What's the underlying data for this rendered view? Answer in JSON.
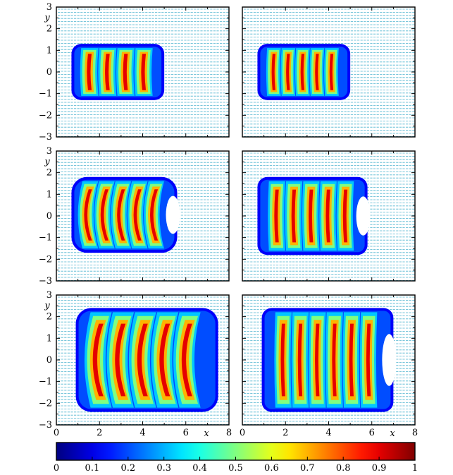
{
  "chart_data": {
    "type": "heatmap",
    "description_of_grid": "3x2 small multiples, normalized velocity magnitude fields with quiver vectors",
    "colorscale": "jet",
    "colorbar": {
      "min": 0,
      "max": 1,
      "ticks": [
        "0",
        "0.1",
        "0.2",
        "0.3",
        "0.4",
        "0.5",
        "0.6",
        "0.7",
        "0.8",
        "0.9",
        "1"
      ]
    },
    "xlim": [
      0,
      8
    ],
    "ylim": [
      -3,
      3
    ],
    "x_ticks": [
      "0",
      "2",
      "4",
      "6",
      "8"
    ],
    "y_ticks": [
      "3",
      "2",
      "1",
      "0",
      "−1",
      "−2",
      "−3"
    ],
    "xlabel": "x",
    "ylabel": "y",
    "panels": [
      {
        "row": 0,
        "col": 0,
        "x_range": [
          0.7,
          5.0
        ],
        "y_range": [
          -1.3,
          1.3
        ],
        "bands": 4,
        "shape": "flat",
        "front_opening": false
      },
      {
        "row": 0,
        "col": 1,
        "x_range": [
          0.7,
          5.0
        ],
        "y_range": [
          -1.3,
          1.3
        ],
        "bands": 5,
        "shape": "flat",
        "front_opening": false
      },
      {
        "row": 1,
        "col": 0,
        "x_range": [
          0.7,
          5.6
        ],
        "y_range": [
          -1.7,
          1.8
        ],
        "bands": 5,
        "shape": "chevron",
        "front_opening": true
      },
      {
        "row": 1,
        "col": 1,
        "x_range": [
          0.7,
          5.8
        ],
        "y_range": [
          -1.8,
          1.8
        ],
        "bands": 5,
        "shape": "flat",
        "front_opening": true
      },
      {
        "row": 2,
        "col": 0,
        "x_range": [
          0.9,
          7.5
        ],
        "y_range": [
          -2.4,
          2.4
        ],
        "bands": 5,
        "shape": "chevron",
        "front_opening": false
      },
      {
        "row": 2,
        "col": 1,
        "x_range": [
          0.9,
          7.0
        ],
        "y_range": [
          -2.4,
          2.4
        ],
        "bands": 6,
        "shape": "flat",
        "front_opening": true
      }
    ]
  }
}
